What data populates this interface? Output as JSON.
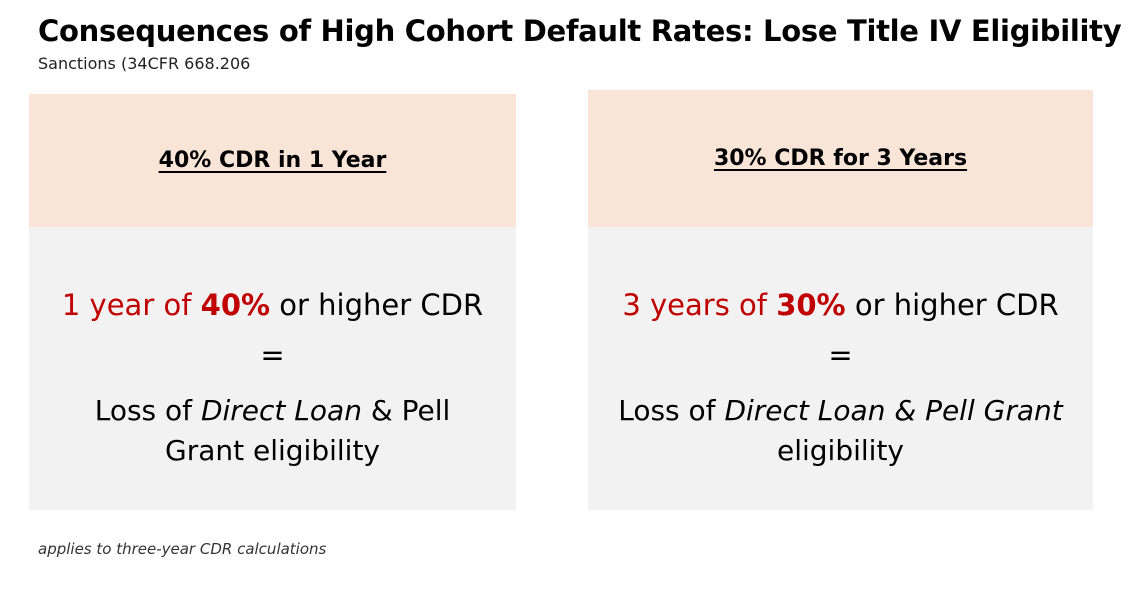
{
  "title": "Consequences of High Cohort Default Rates: Lose Title IV Eligibility",
  "subtitle": "Sanctions (34CFR 668.206",
  "cards": [
    {
      "header": "40% CDR in 1 Year",
      "rule_prefix": "1 year of",
      "rule_percent": "40%",
      "rule_suffix": "or higher CDR",
      "equals": "=",
      "loss_prefix": "Loss of",
      "loss_italic": "Direct Loan",
      "loss_suffix": "& Pell Grant eligibility"
    },
    {
      "header": "30% CDR for 3 Years",
      "rule_prefix": "3 years of",
      "rule_percent": "30%",
      "rule_suffix": "or higher CDR",
      "equals": "=",
      "loss_prefix": "Loss of",
      "loss_italic": "Direct Loan & Pell Grant",
      "loss_suffix": "eligibility"
    }
  ],
  "footnote": "applies to three-year CDR calculations",
  "colors": {
    "header_bg": "#f9e4d8",
    "body_bg": "#f2f2f2",
    "accent_red": "#c00000"
  }
}
